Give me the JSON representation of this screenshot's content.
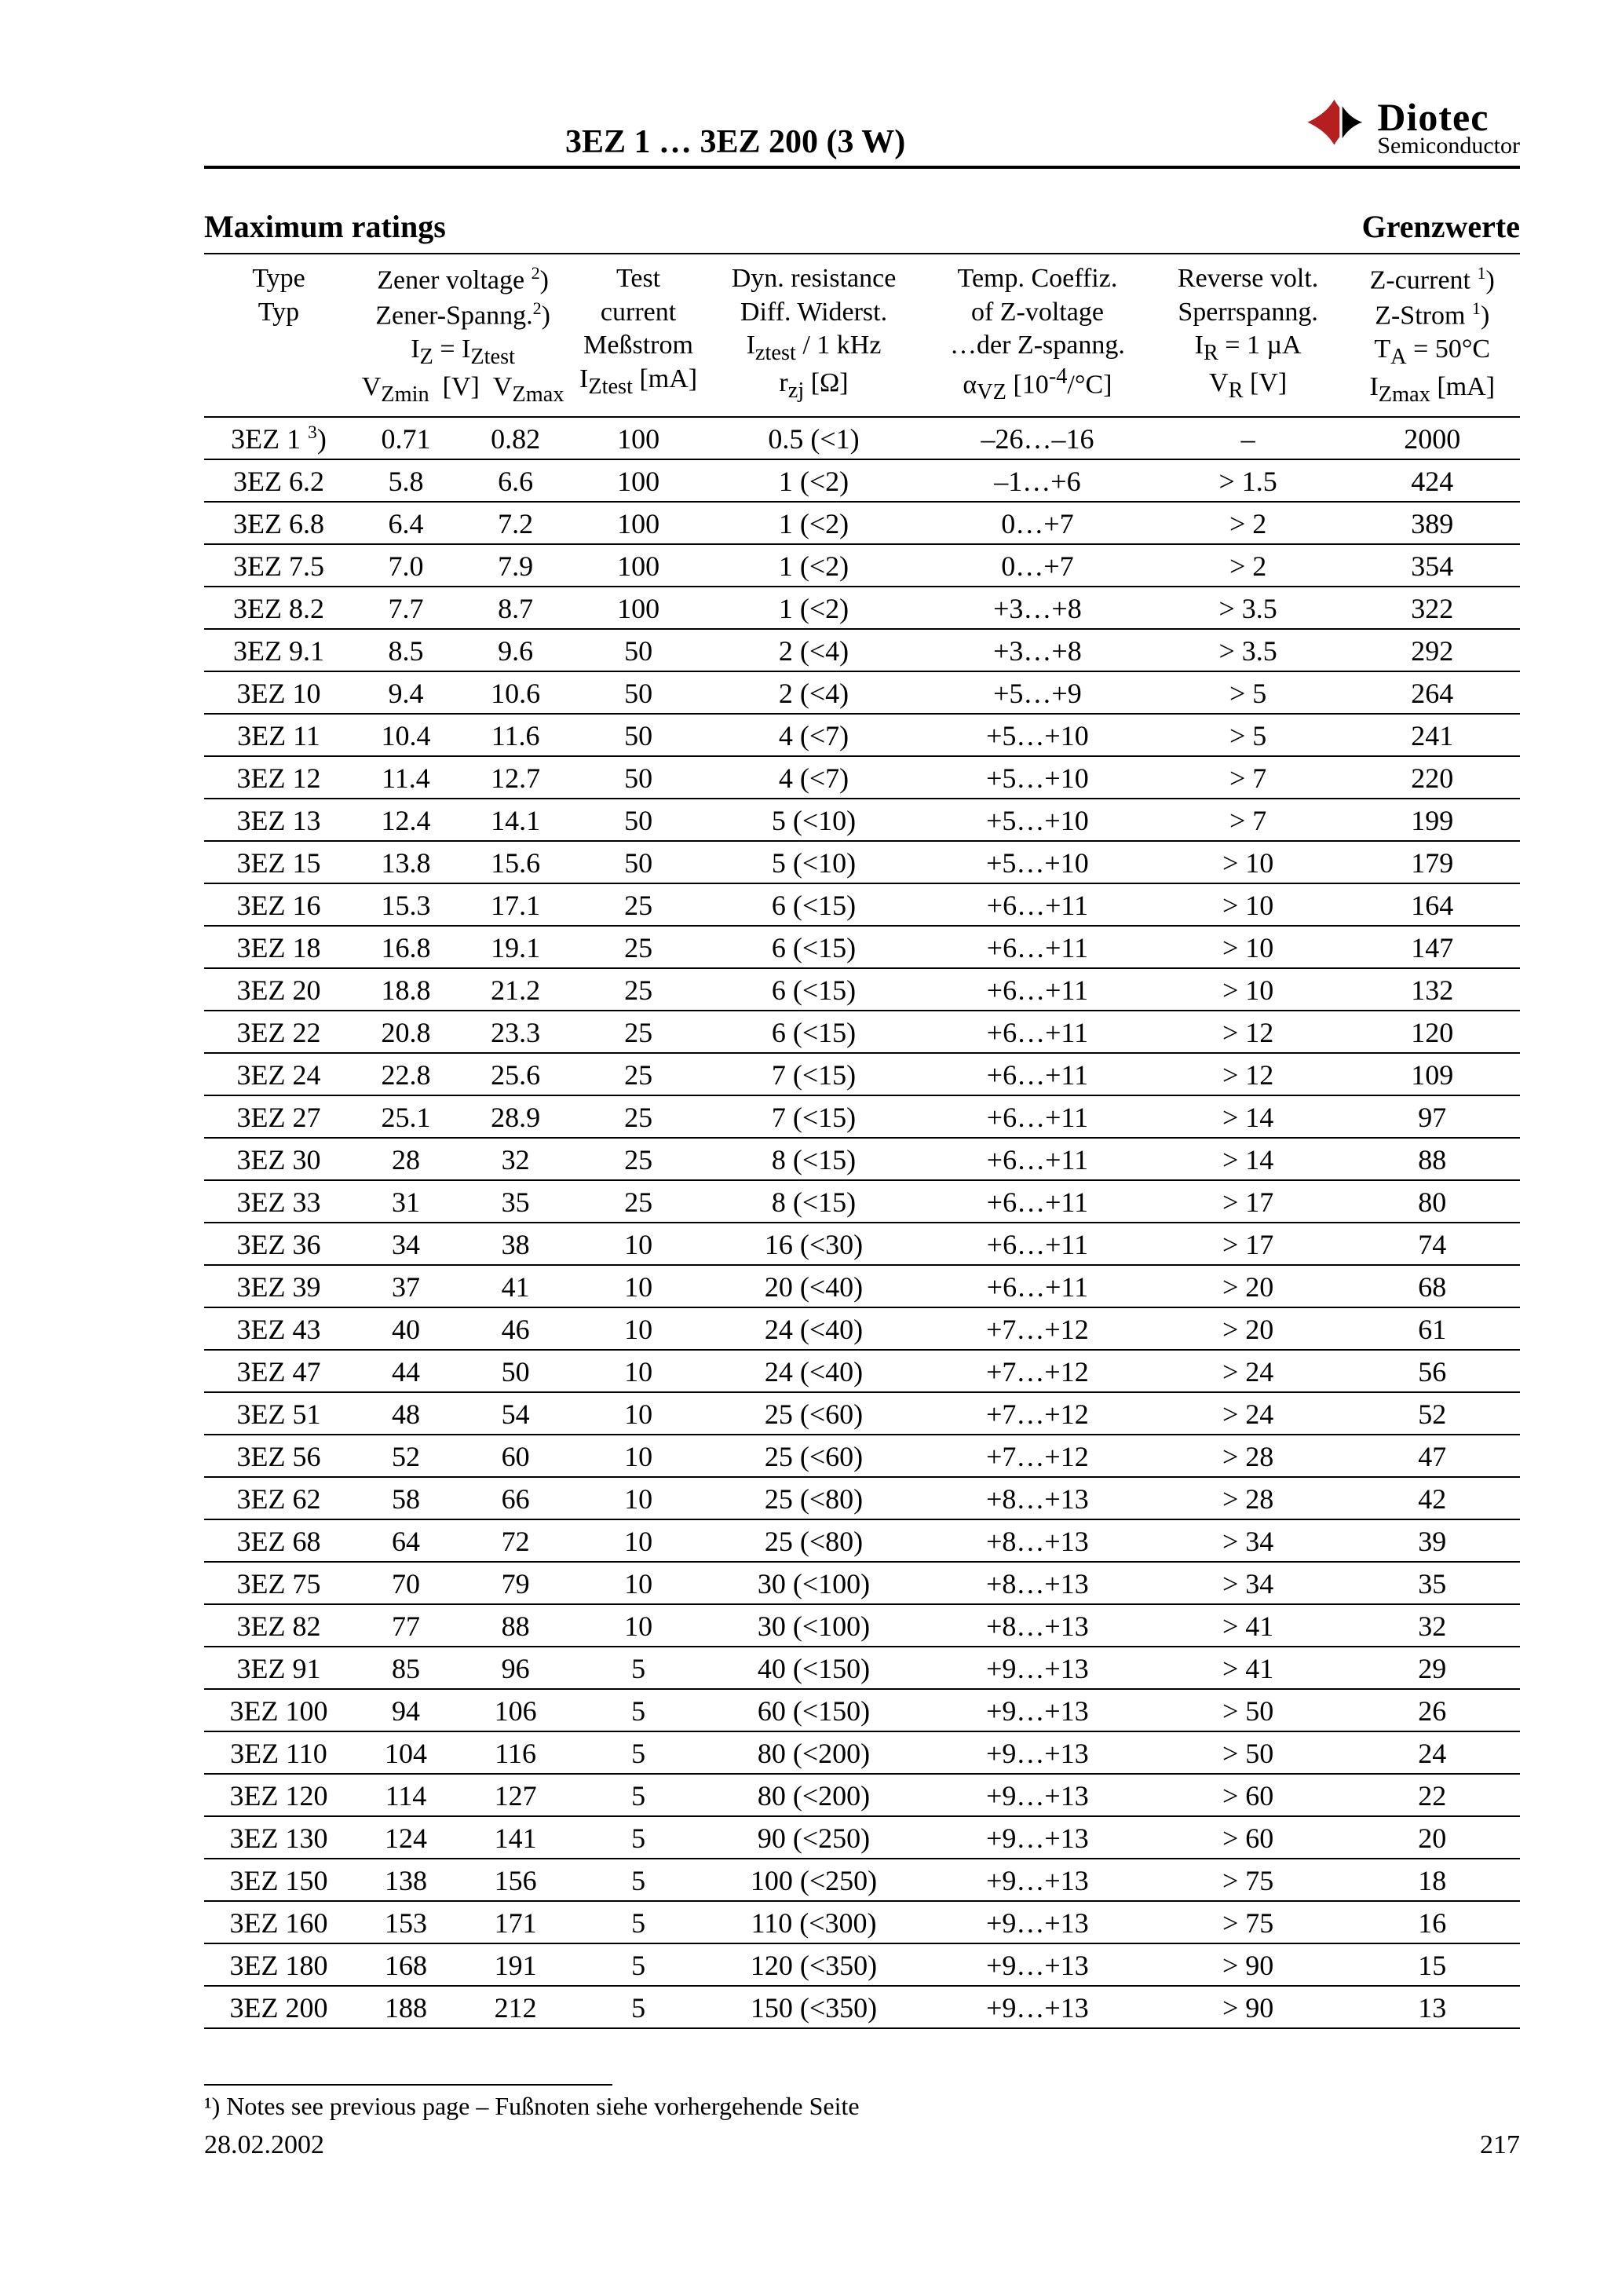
{
  "header": {
    "title": "3EZ 1 … 3EZ 200 (3 W)",
    "logo": {
      "line1": "Diotec",
      "line2": "Semiconductor",
      "accent": "#b51f1f"
    }
  },
  "section": {
    "left": "Maximum ratings",
    "right": "Grenzwerte"
  },
  "table": {
    "headers": {
      "type": [
        "Type",
        "Typ",
        "",
        ""
      ],
      "zener": [
        "Zener voltage ²)",
        "Zener-Spanng.²)",
        "I_Z = I_Ztest",
        "V_Zmin  [V]  V_Zmax"
      ],
      "test": [
        "Test",
        "current",
        "Meßstrom",
        "I_Ztest [mA]"
      ],
      "dyn": [
        "Dyn. resistance",
        "Diff. Widerst.",
        "I_ztest / 1 kHz",
        "r_zj [Ω]"
      ],
      "temp": [
        "Temp. Coeffiz.",
        "of Z-voltage",
        "…der Z-spanng.",
        "α_VZ [10⁻⁴/°C]"
      ],
      "rev": [
        "Reverse volt.",
        "Sperrspanng.",
        "I_R = 1 µA",
        "V_R [V]"
      ],
      "zcur": [
        "Z-current ¹)",
        "Z-Strom ¹)",
        "T_A = 50°C",
        "I_Zmax [mA]"
      ]
    },
    "rows": [
      {
        "type": "3EZ 1 ³)",
        "vmin": "0.71",
        "vmax": "0.82",
        "test": "100",
        "dyn": "0.5 (<1)",
        "temp": "–26…–16",
        "rev": "–",
        "zcur": "2000"
      },
      {
        "type": "3EZ 6.2",
        "vmin": "5.8",
        "vmax": "6.6",
        "test": "100",
        "dyn": "1 (<2)",
        "temp": "–1…+6",
        "rev": "> 1.5",
        "zcur": "424"
      },
      {
        "type": "3EZ 6.8",
        "vmin": "6.4",
        "vmax": "7.2",
        "test": "100",
        "dyn": "1 (<2)",
        "temp": "0…+7",
        "rev": "> 2",
        "zcur": "389"
      },
      {
        "type": "3EZ 7.5",
        "vmin": "7.0",
        "vmax": "7.9",
        "test": "100",
        "dyn": "1 (<2)",
        "temp": "0…+7",
        "rev": "> 2",
        "zcur": "354"
      },
      {
        "type": "3EZ 8.2",
        "vmin": "7.7",
        "vmax": "8.7",
        "test": "100",
        "dyn": "1 (<2)",
        "temp": "+3…+8",
        "rev": "> 3.5",
        "zcur": "322"
      },
      {
        "type": "3EZ 9.1",
        "vmin": "8.5",
        "vmax": "9.6",
        "test": "50",
        "dyn": "2 (<4)",
        "temp": "+3…+8",
        "rev": "> 3.5",
        "zcur": "292"
      },
      {
        "type": "3EZ 10",
        "vmin": "9.4",
        "vmax": "10.6",
        "test": "50",
        "dyn": "2 (<4)",
        "temp": "+5…+9",
        "rev": "> 5",
        "zcur": "264"
      },
      {
        "type": "3EZ 11",
        "vmin": "10.4",
        "vmax": "11.6",
        "test": "50",
        "dyn": "4 (<7)",
        "temp": "+5…+10",
        "rev": "> 5",
        "zcur": "241"
      },
      {
        "type": "3EZ 12",
        "vmin": "11.4",
        "vmax": "12.7",
        "test": "50",
        "dyn": "4 (<7)",
        "temp": "+5…+10",
        "rev": "> 7",
        "zcur": "220"
      },
      {
        "type": "3EZ 13",
        "vmin": "12.4",
        "vmax": "14.1",
        "test": "50",
        "dyn": "5 (<10)",
        "temp": "+5…+10",
        "rev": "> 7",
        "zcur": "199"
      },
      {
        "type": "3EZ 15",
        "vmin": "13.8",
        "vmax": "15.6",
        "test": "50",
        "dyn": "5 (<10)",
        "temp": "+5…+10",
        "rev": "> 10",
        "zcur": "179"
      },
      {
        "type": "3EZ 16",
        "vmin": "15.3",
        "vmax": "17.1",
        "test": "25",
        "dyn": "6 (<15)",
        "temp": "+6…+11",
        "rev": "> 10",
        "zcur": "164"
      },
      {
        "type": "3EZ 18",
        "vmin": "16.8",
        "vmax": "19.1",
        "test": "25",
        "dyn": "6 (<15)",
        "temp": "+6…+11",
        "rev": "> 10",
        "zcur": "147"
      },
      {
        "type": "3EZ 20",
        "vmin": "18.8",
        "vmax": "21.2",
        "test": "25",
        "dyn": "6 (<15)",
        "temp": "+6…+11",
        "rev": "> 10",
        "zcur": "132"
      },
      {
        "type": "3EZ 22",
        "vmin": "20.8",
        "vmax": "23.3",
        "test": "25",
        "dyn": "6 (<15)",
        "temp": "+6…+11",
        "rev": "> 12",
        "zcur": "120"
      },
      {
        "type": "3EZ 24",
        "vmin": "22.8",
        "vmax": "25.6",
        "test": "25",
        "dyn": "7 (<15)",
        "temp": "+6…+11",
        "rev": "> 12",
        "zcur": "109"
      },
      {
        "type": "3EZ 27",
        "vmin": "25.1",
        "vmax": "28.9",
        "test": "25",
        "dyn": "7 (<15)",
        "temp": "+6…+11",
        "rev": "> 14",
        "zcur": "97"
      },
      {
        "type": "3EZ 30",
        "vmin": "28",
        "vmax": "32",
        "test": "25",
        "dyn": "8 (<15)",
        "temp": "+6…+11",
        "rev": "> 14",
        "zcur": "88"
      },
      {
        "type": "3EZ 33",
        "vmin": "31",
        "vmax": "35",
        "test": "25",
        "dyn": "8 (<15)",
        "temp": "+6…+11",
        "rev": "> 17",
        "zcur": "80"
      },
      {
        "type": "3EZ 36",
        "vmin": "34",
        "vmax": "38",
        "test": "10",
        "dyn": "16 (<30)",
        "temp": "+6…+11",
        "rev": "> 17",
        "zcur": "74"
      },
      {
        "type": "3EZ 39",
        "vmin": "37",
        "vmax": "41",
        "test": "10",
        "dyn": "20 (<40)",
        "temp": "+6…+11",
        "rev": "> 20",
        "zcur": "68"
      },
      {
        "type": "3EZ 43",
        "vmin": "40",
        "vmax": "46",
        "test": "10",
        "dyn": "24 (<40)",
        "temp": "+7…+12",
        "rev": "> 20",
        "zcur": "61"
      },
      {
        "type": "3EZ 47",
        "vmin": "44",
        "vmax": "50",
        "test": "10",
        "dyn": "24 (<40)",
        "temp": "+7…+12",
        "rev": "> 24",
        "zcur": "56"
      },
      {
        "type": "3EZ 51",
        "vmin": "48",
        "vmax": "54",
        "test": "10",
        "dyn": "25 (<60)",
        "temp": "+7…+12",
        "rev": "> 24",
        "zcur": "52"
      },
      {
        "type": "3EZ 56",
        "vmin": "52",
        "vmax": "60",
        "test": "10",
        "dyn": "25 (<60)",
        "temp": "+7…+12",
        "rev": "> 28",
        "zcur": "47"
      },
      {
        "type": "3EZ 62",
        "vmin": "58",
        "vmax": "66",
        "test": "10",
        "dyn": "25 (<80)",
        "temp": "+8…+13",
        "rev": "> 28",
        "zcur": "42"
      },
      {
        "type": "3EZ 68",
        "vmin": "64",
        "vmax": "72",
        "test": "10",
        "dyn": "25 (<80)",
        "temp": "+8…+13",
        "rev": "> 34",
        "zcur": "39"
      },
      {
        "type": "3EZ 75",
        "vmin": "70",
        "vmax": "79",
        "test": "10",
        "dyn": "30 (<100)",
        "temp": "+8…+13",
        "rev": "> 34",
        "zcur": "35"
      },
      {
        "type": "3EZ 82",
        "vmin": "77",
        "vmax": "88",
        "test": "10",
        "dyn": "30 (<100)",
        "temp": "+8…+13",
        "rev": "> 41",
        "zcur": "32"
      },
      {
        "type": "3EZ 91",
        "vmin": "85",
        "vmax": "96",
        "test": "5",
        "dyn": "40 (<150)",
        "temp": "+9…+13",
        "rev": "> 41",
        "zcur": "29"
      },
      {
        "type": "3EZ 100",
        "vmin": "94",
        "vmax": "106",
        "test": "5",
        "dyn": "60 (<150)",
        "temp": "+9…+13",
        "rev": "> 50",
        "zcur": "26"
      },
      {
        "type": "3EZ 110",
        "vmin": "104",
        "vmax": "116",
        "test": "5",
        "dyn": "80 (<200)",
        "temp": "+9…+13",
        "rev": "> 50",
        "zcur": "24"
      },
      {
        "type": "3EZ 120",
        "vmin": "114",
        "vmax": "127",
        "test": "5",
        "dyn": "80 (<200)",
        "temp": "+9…+13",
        "rev": "> 60",
        "zcur": "22"
      },
      {
        "type": "3EZ 130",
        "vmin": "124",
        "vmax": "141",
        "test": "5",
        "dyn": "90 (<250)",
        "temp": "+9…+13",
        "rev": "> 60",
        "zcur": "20"
      },
      {
        "type": "3EZ 150",
        "vmin": "138",
        "vmax": "156",
        "test": "5",
        "dyn": "100 (<250)",
        "temp": "+9…+13",
        "rev": "> 75",
        "zcur": "18"
      },
      {
        "type": "3EZ 160",
        "vmin": "153",
        "vmax": "171",
        "test": "5",
        "dyn": "110 (<300)",
        "temp": "+9…+13",
        "rev": "> 75",
        "zcur": "16"
      },
      {
        "type": "3EZ 180",
        "vmin": "168",
        "vmax": "191",
        "test": "5",
        "dyn": "120 (<350)",
        "temp": "+9…+13",
        "rev": "> 90",
        "zcur": "15"
      },
      {
        "type": "3EZ 200",
        "vmin": "188",
        "vmax": "212",
        "test": "5",
        "dyn": "150 (<350)",
        "temp": "+9…+13",
        "rev": "> 90",
        "zcur": "13"
      }
    ]
  },
  "footnote": "¹)   Notes see previous page – Fußnoten siehe vorhergehende Seite",
  "footer": {
    "date": "28.02.2002",
    "page": "217"
  },
  "colwidths": [
    "170",
    "120",
    "130",
    "150",
    "250",
    "260",
    "220",
    "200"
  ]
}
